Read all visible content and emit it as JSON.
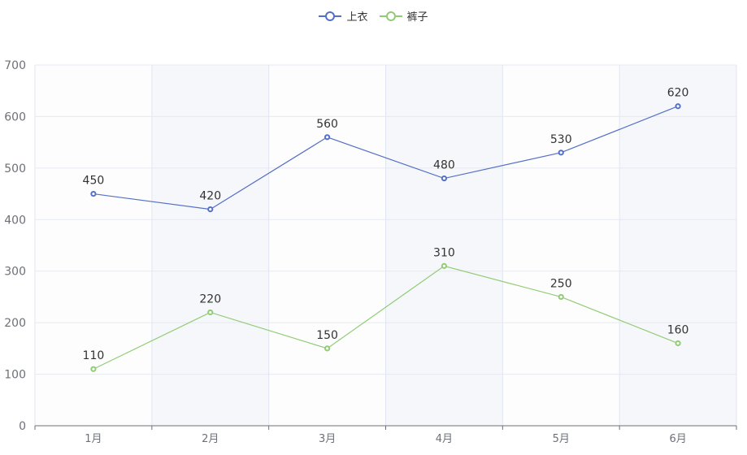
{
  "chart_data": {
    "type": "line",
    "title": "",
    "categories": [
      "1月",
      "2月",
      "3月",
      "4月",
      "5月",
      "6月"
    ],
    "series": [
      {
        "name": "上衣",
        "color": "#5470c6",
        "values": [
          450,
          420,
          560,
          480,
          530,
          620
        ]
      },
      {
        "name": "裤子",
        "color": "#91cc75",
        "values": [
          110,
          220,
          150,
          310,
          250,
          160
        ]
      }
    ],
    "xlabel": "",
    "ylabel": "",
    "ylim": [
      0,
      700
    ],
    "yticks": [
      0,
      100,
      200,
      300,
      400,
      500,
      600,
      700
    ],
    "grid": true,
    "split_area": true,
    "data_labels": true,
    "legend_position": "top-center"
  },
  "legend": {
    "items": [
      {
        "label": "上衣",
        "color": "#5470c6"
      },
      {
        "label": "裤子",
        "color": "#91cc75"
      }
    ]
  }
}
